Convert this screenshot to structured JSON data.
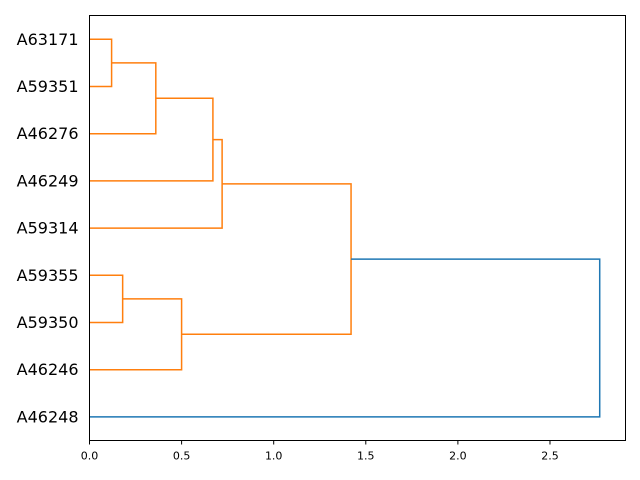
{
  "chart_data": {
    "type": "dendrogram",
    "orientation": "horizontal",
    "leaves": [
      "A63171",
      "A59351",
      "A46276",
      "A46249",
      "A59314",
      "A59355",
      "A59350",
      "A46246",
      "A46248"
    ],
    "merges": [
      {
        "children": [
          "A63171",
          "A59351"
        ],
        "distance": 0.12,
        "color": "#ff7f0e"
      },
      {
        "children": [
          "c0",
          "A46276"
        ],
        "distance": 0.36,
        "color": "#ff7f0e"
      },
      {
        "children": [
          "c1",
          "A46249"
        ],
        "distance": 0.67,
        "color": "#ff7f0e"
      },
      {
        "children": [
          "c2",
          "A59314"
        ],
        "distance": 0.72,
        "color": "#ff7f0e"
      },
      {
        "children": [
          "A59355",
          "A59350"
        ],
        "distance": 0.18,
        "color": "#ff7f0e"
      },
      {
        "children": [
          "c4",
          "A46246"
        ],
        "distance": 0.5,
        "color": "#ff7f0e"
      },
      {
        "children": [
          "c3",
          "c5"
        ],
        "distance": 1.42,
        "color": "#ff7f0e"
      },
      {
        "children": [
          "c6",
          "A46248"
        ],
        "distance": 2.77,
        "color": "#1f77b4"
      }
    ],
    "xlim": [
      0,
      2.91
    ],
    "xticks": [
      "0.0",
      "0.5",
      "1.0",
      "1.5",
      "2.0",
      "2.5"
    ],
    "xtick_values": [
      0,
      0.5,
      1.0,
      1.5,
      2.0,
      2.5
    ],
    "xlabel": "",
    "ylabel": "",
    "title": "",
    "grid": false
  }
}
